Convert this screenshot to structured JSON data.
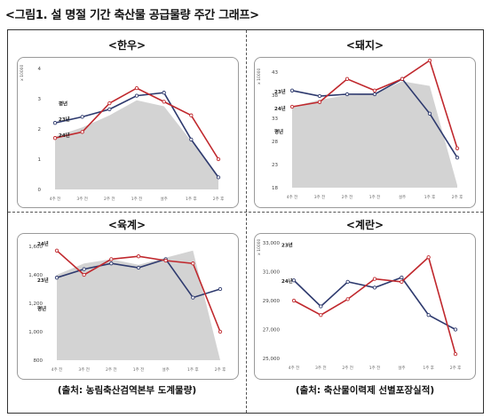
{
  "title": "<그림1. 설 명절 기간 축산물 공급물량 주간 그래프>",
  "sources": {
    "left": "(출처: 농림축산검역본부 도계물량)",
    "right": "(출처: 축산물이력제 선별포장실적)"
  },
  "chart_data": [
    {
      "panel": "<한우>",
      "type": "line",
      "unit": "x 10000",
      "x": [
        "4주 전",
        "3주 전",
        "2주 전",
        "1주 전",
        "설주",
        "1주 후",
        "2주 후"
      ],
      "ylim": [
        0,
        4
      ],
      "yticks": [
        "0",
        "1",
        "2",
        "3",
        "4"
      ],
      "series": [
        {
          "name": "23년",
          "color": "#2e3a6e",
          "values": [
            2.2,
            2.4,
            2.65,
            3.1,
            3.2,
            1.65,
            0.4
          ]
        },
        {
          "name": "24년",
          "color": "#c0282d",
          "values": [
            1.7,
            1.9,
            2.85,
            3.35,
            2.9,
            2.45,
            1.0
          ]
        },
        {
          "name": "평년",
          "color": "#d3d3d3",
          "area": true,
          "values": [
            1.75,
            2.05,
            2.45,
            2.95,
            2.75,
            1.6,
            0.45
          ]
        }
      ]
    },
    {
      "panel": "<돼지>",
      "type": "line",
      "unit": "x 10000",
      "x": [
        "4주 전",
        "3주 전",
        "2주 전",
        "1주 전",
        "설주",
        "1주 후",
        "2주 후"
      ],
      "ylim": [
        18,
        43
      ],
      "yticks": [
        "18",
        "23",
        "28",
        "33",
        "38",
        "43"
      ],
      "series": [
        {
          "name": "23년",
          "color": "#2e3a6e",
          "values": [
            39.0,
            37.8,
            38.2,
            38.2,
            41.5,
            34.0,
            24.5
          ]
        },
        {
          "name": "24년",
          "color": "#c0282d",
          "values": [
            35.5,
            36.5,
            41.5,
            39.0,
            41.5,
            45.5,
            26.5
          ]
        },
        {
          "name": "평년",
          "color": "#d3d3d3",
          "area": true,
          "values": [
            35.5,
            37.0,
            38.0,
            38.2,
            41.0,
            40.0,
            18.5
          ]
        }
      ]
    },
    {
      "panel": "<육계>",
      "type": "line",
      "x": [
        "4주 전",
        "3주 전",
        "2주 전",
        "1주 전",
        "설주",
        "1주 후",
        "2주 후"
      ],
      "ylim": [
        800,
        1600
      ],
      "yticks": [
        "800",
        "1,000",
        "1,200",
        "1,400",
        "1,600"
      ],
      "series": [
        {
          "name": "23년",
          "color": "#2e3a6e",
          "values": [
            1380,
            1440,
            1480,
            1450,
            1510,
            1240,
            1300
          ]
        },
        {
          "name": "24년",
          "color": "#c0282d",
          "values": [
            1570,
            1400,
            1510,
            1530,
            1500,
            1480,
            1000
          ]
        },
        {
          "name": "평년",
          "color": "#d3d3d3",
          "area": true,
          "values": [
            1400,
            1480,
            1510,
            1470,
            1520,
            1570,
            800
          ]
        }
      ]
    },
    {
      "panel": "<계란>",
      "type": "line",
      "unit": "x 10000",
      "x": [
        "4주 전",
        "3주 전",
        "2주 전",
        "1주 전",
        "설주",
        "1주 후",
        "2주 후"
      ],
      "ylim": [
        25000,
        33000
      ],
      "yticks": [
        "25,000",
        "27,000",
        "29,000",
        "31,000",
        "33,000"
      ],
      "series": [
        {
          "name": "23년",
          "color": "#2e3a6e",
          "values": [
            30400,
            28600,
            30300,
            29900,
            30600,
            28000,
            27000
          ]
        },
        {
          "name": "24년",
          "color": "#c0282d",
          "values": [
            29000,
            28000,
            29100,
            30500,
            30300,
            32000,
            25300
          ]
        }
      ]
    }
  ]
}
